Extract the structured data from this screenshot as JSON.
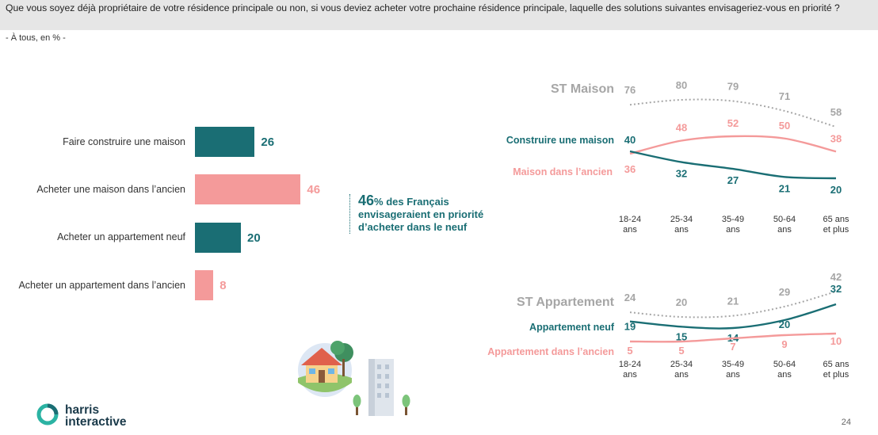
{
  "header": {
    "question": "Que vous soyez déjà propriétaire de votre résidence principale ou non, si vous deviez acheter votre prochaine résidence principale, laquelle des solutions suivantes envisageriez-vous en priorité ?",
    "base": "- À tous, en % -"
  },
  "colors": {
    "teal": "#1a6e74",
    "pink": "#f49a9a",
    "grey": "#a6a6a6"
  },
  "chart_data": [
    {
      "type": "bar",
      "orientation": "horizontal",
      "categories": [
        "Faire construire une maison",
        "Acheter une maison dans l’ancien",
        "Acheter un appartement neuf",
        "Acheter un appartement dans l’ancien"
      ],
      "values": [
        26,
        46,
        20,
        8
      ],
      "value_labels": [
        "26",
        "46",
        "20",
        "8"
      ],
      "colors": [
        "#1a6e74",
        "#f49a9a",
        "#1a6e74",
        "#f49a9a"
      ]
    },
    {
      "type": "line",
      "categories": [
        "18-24 ans",
        "25-34 ans",
        "35-49 ans",
        "50-64 ans",
        "65 ans et plus"
      ],
      "series": [
        {
          "name": "ST Maison",
          "values": [
            76,
            80,
            79,
            71,
            58
          ],
          "labels": [
            "76",
            "80",
            "79",
            "71",
            "58"
          ],
          "color": "#a6a6a6",
          "dashed": true
        },
        {
          "name": "Maison dans l’ancien",
          "values": [
            36,
            48,
            52,
            50,
            38
          ],
          "labels": [
            "36",
            "48",
            "52",
            "50",
            "38"
          ],
          "color": "#f49a9a",
          "dashed": false
        },
        {
          "name": "Construire une maison",
          "values": [
            40,
            32,
            27,
            21,
            20
          ],
          "labels": [
            "40",
            "32",
            "27",
            "21",
            "20"
          ],
          "color": "#1a6e74",
          "dashed": false
        }
      ]
    },
    {
      "type": "line",
      "categories": [
        "18-24 ans",
        "25-34 ans",
        "35-49 ans",
        "50-64 ans",
        "65 ans et plus"
      ],
      "series": [
        {
          "name": "ST Appartement",
          "values": [
            24,
            20,
            21,
            29,
            42
          ],
          "labels": [
            "24",
            "20",
            "21",
            "29",
            "42"
          ],
          "color": "#a6a6a6",
          "dashed": true
        },
        {
          "name": "Appartement neuf",
          "values": [
            19,
            15,
            14,
            20,
            32
          ],
          "labels": [
            "19",
            "15",
            "14",
            "20",
            "32"
          ],
          "color": "#1a6e74",
          "dashed": false
        },
        {
          "name": "Appartement dans l’ancien",
          "values": [
            5,
            5,
            7,
            9,
            10
          ],
          "labels": [
            "5",
            "5",
            "7",
            "9",
            "10"
          ],
          "color": "#f49a9a",
          "dashed": false
        }
      ]
    }
  ],
  "age_groups": [
    {
      "l1": "18-24",
      "l2": "ans"
    },
    {
      "l1": "25-34",
      "l2": "ans"
    },
    {
      "l1": "35-49",
      "l2": "ans"
    },
    {
      "l1": "50-64",
      "l2": "ans"
    },
    {
      "l1": "65 ans",
      "l2": "et plus"
    }
  ],
  "callout": {
    "number": "46",
    "text_after_number": "% des Français",
    "line2": "envisageraient en priorité",
    "line3": "d’acheter dans le neuf"
  },
  "logo": {
    "line1": "harris",
    "line2": "interactive"
  },
  "page_number": "24"
}
